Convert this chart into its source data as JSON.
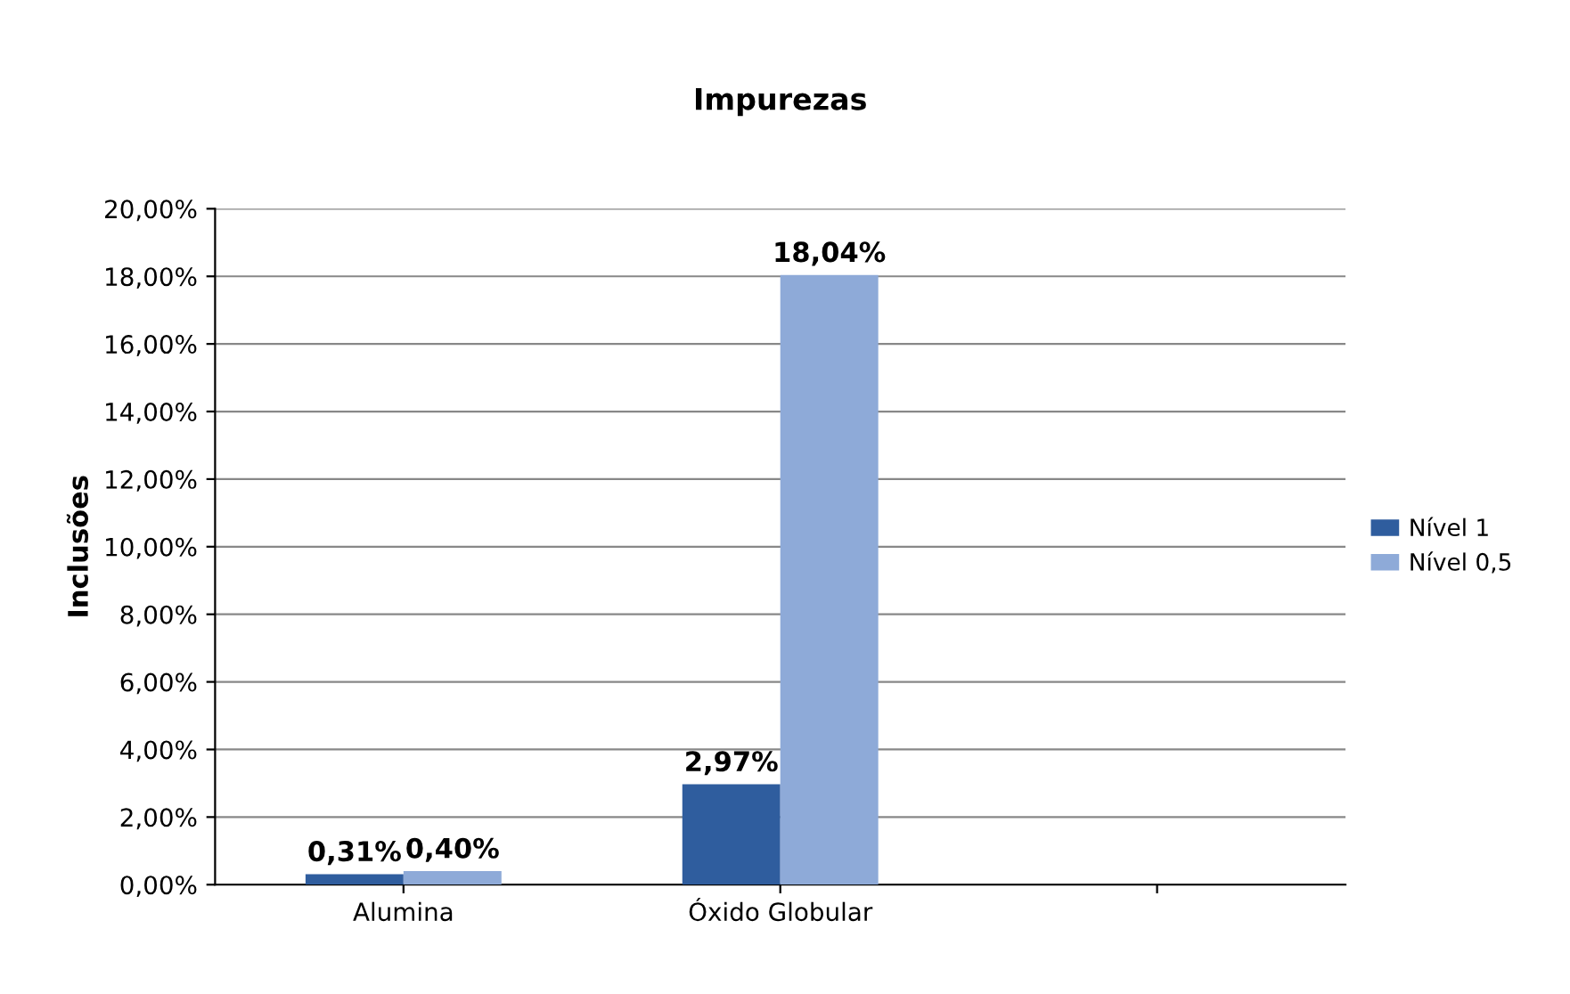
{
  "chart_data": {
    "type": "bar",
    "title": "Impurezas",
    "ylabel": "Inclusões",
    "categories": [
      "Alumina",
      "Óxido Globular",
      null
    ],
    "series": [
      {
        "name": "Nível 1",
        "color": "#2f5d9e",
        "values": [
          0.31,
          2.97,
          null
        ],
        "value_labels": [
          "0,31%",
          "2,97%",
          null
        ]
      },
      {
        "name": "Nível 0,5",
        "color": "#8eaad8",
        "values": [
          0.4,
          18.04,
          null
        ],
        "value_labels": [
          "0,40%",
          "18,04%",
          null
        ]
      }
    ],
    "ylim": [
      0,
      20
    ],
    "yticks": [
      {
        "value": 0,
        "label": "0,00%"
      },
      {
        "value": 2,
        "label": "2,00%"
      },
      {
        "value": 4,
        "label": "4,00%"
      },
      {
        "value": 6,
        "label": "6,00%"
      },
      {
        "value": 8,
        "label": "8,00%"
      },
      {
        "value": 10,
        "label": "10,00%"
      },
      {
        "value": 12,
        "label": "12,00%"
      },
      {
        "value": 14,
        "label": "14,00%"
      },
      {
        "value": 16,
        "label": "16,00%"
      },
      {
        "value": 18,
        "label": "18,00%"
      },
      {
        "value": 20,
        "label": "20,00%"
      }
    ],
    "grid": "y",
    "legend": "right"
  }
}
